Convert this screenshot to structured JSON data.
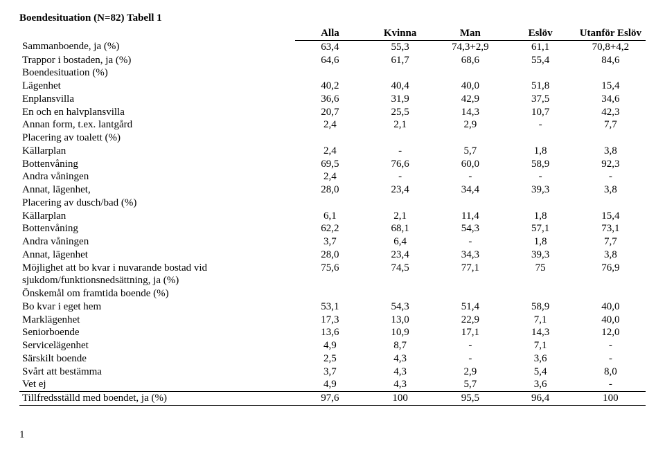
{
  "title": "Boendesituation (N=82) Tabell 1",
  "columns": [
    "Alla",
    "Kvinna",
    "Man",
    "Eslöv",
    "Utanför Eslöv"
  ],
  "rows": [
    {
      "label": "Sammanboende, ja (%)",
      "v": [
        "63,4",
        "55,3",
        "74,3+2,9",
        "61,1",
        "70,8+4,2"
      ]
    },
    {
      "label": "Trappor i bostaden, ja (%)",
      "v": [
        "64,6",
        "61,7",
        "68,6",
        "55,4",
        "84,6"
      ]
    },
    {
      "label": "Boendesituation (%)",
      "v": [
        "",
        "",
        "",
        "",
        ""
      ]
    },
    {
      "label": "Lägenhet",
      "v": [
        "40,2",
        "40,4",
        "40,0",
        "51,8",
        "15,4"
      ]
    },
    {
      "label": "Enplansvilla",
      "v": [
        "36,6",
        "31,9",
        "42,9",
        "37,5",
        "34,6"
      ]
    },
    {
      "label": "En och en halvplansvilla",
      "v": [
        "20,7",
        "25,5",
        "14,3",
        "10,7",
        "42,3"
      ]
    },
    {
      "label": "Annan form, t.ex. lantgård",
      "v": [
        "2,4",
        "2,1",
        "2,9",
        "-",
        "7,7"
      ]
    },
    {
      "label": "Placering av toalett (%)",
      "v": [
        "",
        "",
        "",
        "",
        ""
      ]
    },
    {
      "label": "Källarplan",
      "v": [
        "2,4",
        "-",
        "5,7",
        "1,8",
        "3,8"
      ]
    },
    {
      "label": "Bottenvåning",
      "v": [
        "69,5",
        "76,6",
        "60,0",
        "58,9",
        "92,3"
      ]
    },
    {
      "label": "Andra våningen",
      "v": [
        "2,4",
        "-",
        "-",
        "-",
        "-"
      ]
    },
    {
      "label": "Annat, lägenhet,",
      "v": [
        "28,0",
        "23,4",
        "34,4",
        "39,3",
        "3,8"
      ]
    },
    {
      "label": "Placering av dusch/bad (%)",
      "v": [
        "",
        "",
        "",
        "",
        ""
      ]
    },
    {
      "label": "Källarplan",
      "v": [
        "6,1",
        "2,1",
        "11,4",
        "1,8",
        "15,4"
      ]
    },
    {
      "label": "Bottenvåning",
      "v": [
        "62,2",
        "68,1",
        "54,3",
        "57,1",
        "73,1"
      ]
    },
    {
      "label": "Andra våningen",
      "v": [
        "3,7",
        "6,4",
        "-",
        "1,8",
        "7,7"
      ]
    },
    {
      "label": "Annat, lägenhet",
      "v": [
        "28,0",
        "23,4",
        "34,3",
        "39,3",
        "3,8"
      ]
    },
    {
      "label": "Möjlighet att bo kvar i nuvarande bostad vid sjukdom/funktionsnedsättning, ja (%)",
      "v": [
        "75,6",
        "74,5",
        "77,1",
        "75",
        "76,9"
      ]
    },
    {
      "label": "Önskemål om framtida boende (%)",
      "v": [
        "",
        "",
        "",
        "",
        ""
      ]
    },
    {
      "label": "Bo kvar i eget hem",
      "v": [
        "53,1",
        "54,3",
        "51,4",
        "58,9",
        "40,0"
      ]
    },
    {
      "label": "Marklägenhet",
      "v": [
        "17,3",
        "13,0",
        "22,9",
        "7,1",
        "40,0"
      ]
    },
    {
      "label": "Seniorboende",
      "v": [
        "13,6",
        "10,9",
        "17,1",
        "14,3",
        "12,0"
      ]
    },
    {
      "label": "Servicelägenhet",
      "v": [
        "4,9",
        "8,7",
        "-",
        "7,1",
        "-"
      ]
    },
    {
      "label": "Särskilt boende",
      "v": [
        "2,5",
        "4,3",
        "-",
        "3,6",
        "-"
      ]
    },
    {
      "label": "Svårt att bestämma",
      "v": [
        "3,7",
        "4,3",
        "2,9",
        "5,4",
        "8,0"
      ]
    },
    {
      "label": "Vet ej",
      "v": [
        "4,9",
        "4,3",
        "5,7",
        "3,6",
        "-"
      ]
    },
    {
      "label": "Tillfredsställd med boendet, ja (%)",
      "v": [
        "97,6",
        "100",
        "95,5",
        "96,4",
        "100"
      ],
      "lastBefore": true
    }
  ],
  "pageNum": "1"
}
